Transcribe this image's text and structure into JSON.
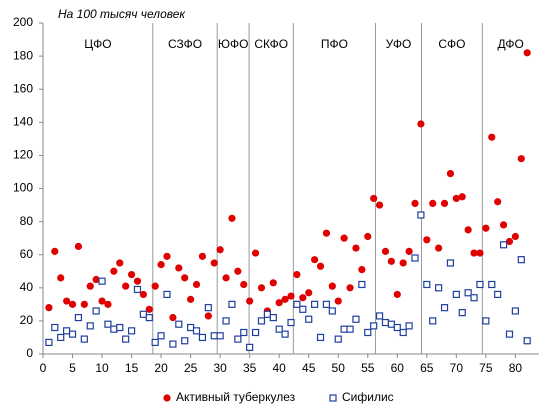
{
  "chart_data": {
    "type": "scatter",
    "subtitle": "На 100 тысяч человек",
    "xlim": [
      0,
      84
    ],
    "xticks": [
      0,
      5,
      10,
      15,
      20,
      25,
      30,
      35,
      40,
      45,
      50,
      55,
      60,
      65,
      70,
      75,
      80
    ],
    "ylim": [
      0,
      200
    ],
    "yticks": [
      0,
      20,
      40,
      60,
      80,
      100,
      120,
      140,
      160,
      180,
      200
    ],
    "legend": "bottom",
    "regions": [
      "ЦФО",
      "СЗФО",
      "ЮФО",
      "СКФО",
      "ПФО",
      "УФО",
      "СФО",
      "ДФО"
    ],
    "region_bounds": [
      18.6,
      29.5,
      34.9,
      42.4,
      56.3,
      64.1,
      74.4
    ],
    "x": [
      1,
      2,
      3,
      4,
      5,
      6,
      7,
      8,
      9,
      10,
      11,
      12,
      13,
      14,
      15,
      16,
      17,
      18,
      19,
      20,
      21,
      22,
      23,
      24,
      25,
      26,
      27,
      28,
      29,
      30,
      31,
      32,
      33,
      34,
      35,
      36,
      37,
      38,
      39,
      40,
      41,
      42,
      43,
      44,
      45,
      46,
      47,
      48,
      49,
      50,
      51,
      52,
      53,
      54,
      55,
      56,
      57,
      58,
      59,
      60,
      61,
      62,
      63,
      64,
      65,
      66,
      67,
      68,
      69,
      70,
      71,
      72,
      73,
      74,
      75,
      76,
      77,
      78,
      79,
      80,
      81,
      82
    ],
    "series": [
      {
        "name": "Активный туберкулез",
        "color": "#e00000",
        "marker": "circle",
        "values": [
          28,
          62,
          46,
          32,
          30,
          65,
          30,
          41,
          45,
          32,
          30,
          50,
          55,
          41,
          48,
          44,
          36,
          27,
          41,
          54,
          59,
          22,
          52,
          46,
          33,
          42,
          59,
          23,
          55,
          63,
          46,
          82,
          50,
          42,
          32,
          61,
          40,
          26,
          43,
          31,
          33,
          35,
          48,
          34,
          37,
          57,
          53,
          73,
          41,
          32,
          70,
          40,
          64,
          51,
          71,
          94,
          90,
          62,
          56,
          36,
          55,
          62,
          91,
          139,
          69,
          91,
          64,
          91,
          109,
          94,
          95,
          75,
          61,
          61,
          76,
          131,
          92,
          78,
          68,
          71,
          118,
          182
        ]
      },
      {
        "name": "Сифилис",
        "color": "#1f3f9f",
        "marker": "square",
        "values": [
          7,
          16,
          10,
          14,
          12,
          22,
          9,
          17,
          26,
          44,
          18,
          15,
          16,
          9,
          14,
          39,
          24,
          22,
          7,
          11,
          36,
          6,
          18,
          8,
          16,
          14,
          10,
          28,
          11,
          11,
          20,
          30,
          9,
          13,
          4,
          13,
          20,
          24,
          22,
          15,
          12,
          19,
          30,
          27,
          21,
          30,
          10,
          30,
          26,
          9,
          15,
          15,
          21,
          42,
          13,
          17,
          23,
          19,
          18,
          16,
          13,
          17,
          58,
          84,
          42,
          20,
          40,
          28,
          55,
          36,
          25,
          37,
          34,
          42,
          20,
          42,
          36,
          66,
          12,
          26,
          57,
          8
        ]
      }
    ]
  }
}
